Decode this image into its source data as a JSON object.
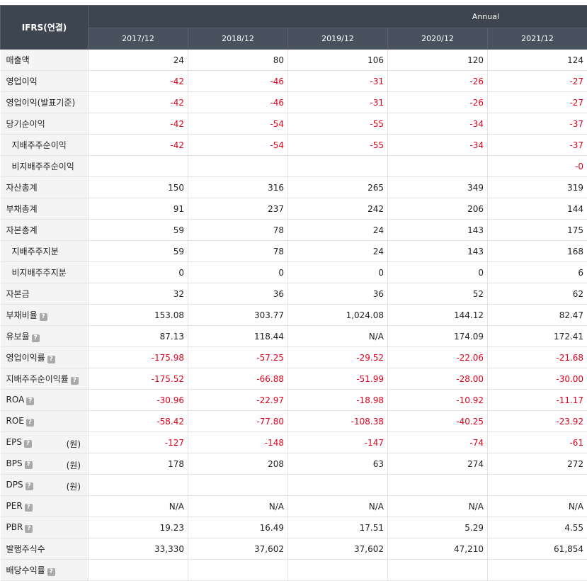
{
  "header": {
    "corner_label": "IFRS(연결)",
    "period_type": "Annual",
    "years": [
      "2017/12",
      "2018/12",
      "2019/12",
      "2020/12",
      "2021/12"
    ]
  },
  "help_glyph": "?",
  "rows": [
    {
      "label": "매출액",
      "sub": false,
      "help": false,
      "unit": "",
      "values": [
        "24",
        "80",
        "106",
        "120",
        "124"
      ]
    },
    {
      "label": "영업이익",
      "sub": false,
      "help": false,
      "unit": "",
      "values": [
        "-42",
        "-46",
        "-31",
        "-26",
        "-27"
      ]
    },
    {
      "label": "영업이익(발표기준)",
      "sub": false,
      "help": false,
      "unit": "",
      "values": [
        "-42",
        "-46",
        "-31",
        "-26",
        "-27"
      ]
    },
    {
      "label": "당기순이익",
      "sub": false,
      "help": false,
      "unit": "",
      "values": [
        "-42",
        "-54",
        "-55",
        "-34",
        "-37"
      ]
    },
    {
      "label": "지배주주순이익",
      "sub": true,
      "help": false,
      "unit": "",
      "values": [
        "-42",
        "-54",
        "-55",
        "-34",
        "-37"
      ]
    },
    {
      "label": "비지배주주순이익",
      "sub": true,
      "help": false,
      "unit": "",
      "values": [
        "",
        "",
        "",
        "",
        "-0"
      ]
    },
    {
      "label": "자산총계",
      "sub": false,
      "help": false,
      "unit": "",
      "values": [
        "150",
        "316",
        "265",
        "349",
        "319"
      ]
    },
    {
      "label": "부채총계",
      "sub": false,
      "help": false,
      "unit": "",
      "values": [
        "91",
        "237",
        "242",
        "206",
        "144"
      ]
    },
    {
      "label": "자본총계",
      "sub": false,
      "help": false,
      "unit": "",
      "values": [
        "59",
        "78",
        "24",
        "143",
        "175"
      ]
    },
    {
      "label": "지배주주지분",
      "sub": true,
      "help": false,
      "unit": "",
      "values": [
        "59",
        "78",
        "24",
        "143",
        "168"
      ]
    },
    {
      "label": "비지배주주지분",
      "sub": true,
      "help": false,
      "unit": "",
      "values": [
        "0",
        "0",
        "0",
        "0",
        "6"
      ]
    },
    {
      "label": "자본금",
      "sub": false,
      "help": false,
      "unit": "",
      "values": [
        "32",
        "36",
        "36",
        "52",
        "62"
      ]
    },
    {
      "label": "부채비율",
      "sub": false,
      "help": true,
      "unit": "",
      "values": [
        "153.08",
        "303.77",
        "1,024.08",
        "144.12",
        "82.47"
      ]
    },
    {
      "label": "유보율",
      "sub": false,
      "help": true,
      "unit": "",
      "values": [
        "87.13",
        "118.44",
        "N/A",
        "174.09",
        "172.41"
      ]
    },
    {
      "label": "영업이익률",
      "sub": false,
      "help": true,
      "unit": "",
      "values": [
        "-175.98",
        "-57.25",
        "-29.52",
        "-22.06",
        "-21.68"
      ]
    },
    {
      "label": "지배주주순이익률",
      "sub": false,
      "help": true,
      "unit": "",
      "values": [
        "-175.52",
        "-66.88",
        "-51.99",
        "-28.00",
        "-30.00"
      ]
    },
    {
      "label": "ROA",
      "sub": false,
      "help": true,
      "unit": "",
      "values": [
        "-30.96",
        "-22.97",
        "-18.98",
        "-10.92",
        "-11.17"
      ]
    },
    {
      "label": "ROE",
      "sub": false,
      "help": true,
      "unit": "",
      "values": [
        "-58.42",
        "-77.80",
        "-108.38",
        "-40.25",
        "-23.92"
      ]
    },
    {
      "label": "EPS",
      "sub": false,
      "help": true,
      "unit": "(원)",
      "values": [
        "-127",
        "-148",
        "-147",
        "-74",
        "-61"
      ]
    },
    {
      "label": "BPS",
      "sub": false,
      "help": true,
      "unit": "(원)",
      "values": [
        "178",
        "208",
        "63",
        "274",
        "272"
      ]
    },
    {
      "label": "DPS",
      "sub": false,
      "help": true,
      "unit": "(원)",
      "values": [
        "",
        "",
        "",
        "",
        ""
      ]
    },
    {
      "label": "PER",
      "sub": false,
      "help": true,
      "unit": "",
      "values": [
        "N/A",
        "N/A",
        "N/A",
        "N/A",
        "N/A"
      ]
    },
    {
      "label": "PBR",
      "sub": false,
      "help": true,
      "unit": "",
      "values": [
        "19.23",
        "16.49",
        "17.51",
        "5.29",
        "4.55"
      ]
    },
    {
      "label": "발행주식수",
      "sub": false,
      "help": false,
      "unit": "",
      "values": [
        "33,330",
        "37,602",
        "37,602",
        "47,210",
        "61,854"
      ]
    },
    {
      "label": "배당수익률",
      "sub": false,
      "help": true,
      "unit": "",
      "values": [
        "",
        "",
        "",
        "",
        ""
      ]
    }
  ]
}
